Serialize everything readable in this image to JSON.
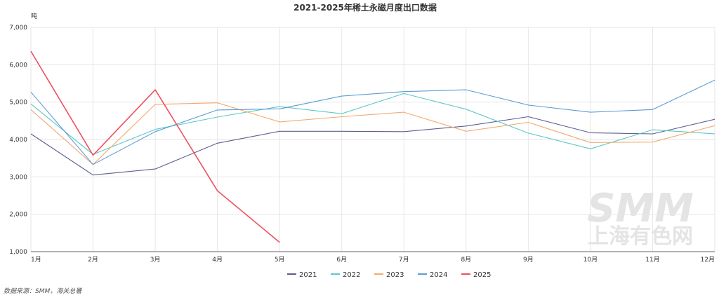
{
  "chart_data": {
    "type": "line",
    "title": "2021-2025年稀土永磁月度出口数据",
    "ylabel": "吨",
    "xlabel": "",
    "ylim": [
      1000,
      7000
    ],
    "yticks": [
      "1,000",
      "2,000",
      "3,000",
      "4,000",
      "5,000",
      "6,000",
      "7,000"
    ],
    "categories": [
      "1月",
      "2月",
      "3月",
      "4月",
      "5月",
      "6月",
      "7月",
      "8月",
      "9月",
      "10月",
      "11月",
      "12月"
    ],
    "grid": true,
    "legend_position": "bottom",
    "series": [
      {
        "name": "2021",
        "color": "#5b5f8f",
        "values": [
          4150,
          3050,
          3210,
          3900,
          4220,
          4220,
          4210,
          4360,
          4610,
          4180,
          4150,
          4540
        ]
      },
      {
        "name": "2022",
        "color": "#5ec7c8",
        "values": [
          4950,
          3600,
          4270,
          4600,
          4880,
          4690,
          5230,
          4810,
          4170,
          3750,
          4260,
          4150
        ]
      },
      {
        "name": "2023",
        "color": "#f4a96f",
        "values": [
          4800,
          3330,
          4940,
          4980,
          4470,
          4610,
          4730,
          4220,
          4460,
          3920,
          3930,
          4370
        ]
      },
      {
        "name": "2024",
        "color": "#5b9bd5",
        "values": [
          5270,
          3330,
          4210,
          4790,
          4820,
          5160,
          5280,
          5330,
          4920,
          4730,
          4800,
          5590
        ]
      },
      {
        "name": "2025",
        "color": "#f0505c",
        "values": [
          6360,
          3580,
          5330,
          2630,
          1250,
          null,
          null,
          null,
          null,
          null,
          null,
          null
        ]
      }
    ]
  },
  "source": "数据来源：SMM，海关总署",
  "watermark": {
    "top": "SMM",
    "bottom": "上海有色网"
  }
}
